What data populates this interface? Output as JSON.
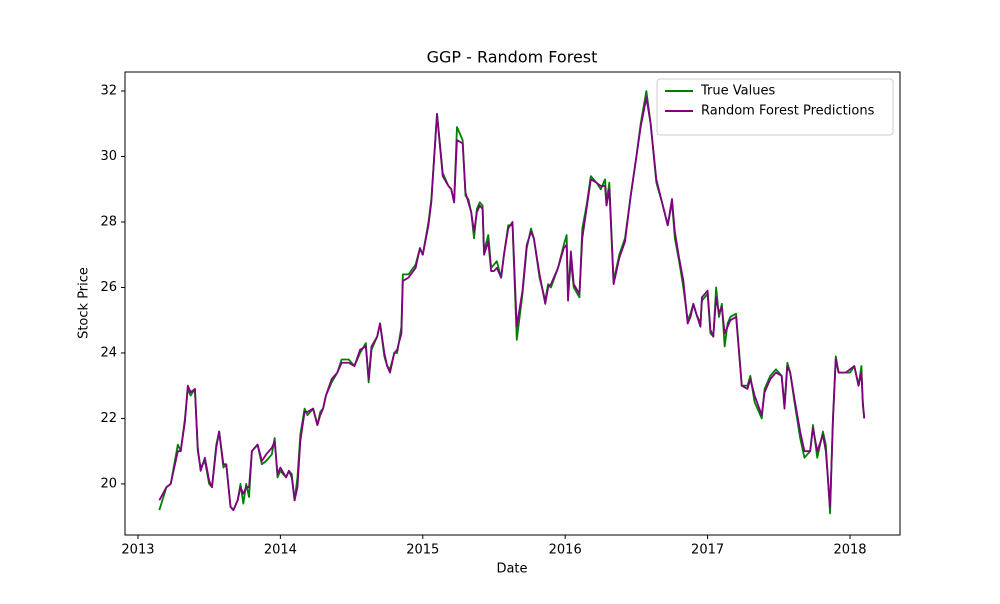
{
  "chart_data": {
    "type": "line",
    "title": "GGP - Random Forest",
    "x_label": "Date",
    "y_label": "Stock Price",
    "x": [
      2013.15,
      2013.2,
      2013.23,
      2013.28,
      2013.3,
      2013.33,
      2013.35,
      2013.37,
      2013.4,
      2013.42,
      2013.44,
      2013.47,
      2013.5,
      2013.52,
      2013.55,
      2013.57,
      2013.6,
      2013.62,
      2013.65,
      2013.67,
      2013.7,
      2013.72,
      2013.74,
      2013.76,
      2013.78,
      2013.8,
      2013.84,
      2013.87,
      2013.9,
      2013.94,
      2013.96,
      2013.98,
      2014.0,
      2014.04,
      2014.06,
      2014.08,
      2014.1,
      2014.12,
      2014.14,
      2014.17,
      2014.19,
      2014.23,
      2014.26,
      2014.28,
      2014.3,
      2014.32,
      2014.36,
      2014.4,
      2014.43,
      2014.48,
      2014.52,
      2014.56,
      2014.6,
      2014.62,
      2014.64,
      2014.68,
      2014.7,
      2014.73,
      2014.75,
      2014.77,
      2014.8,
      2014.82,
      2014.85,
      2014.86,
      2014.9,
      2014.95,
      2014.98,
      2015.0,
      2015.04,
      2015.06,
      2015.1,
      2015.14,
      2015.18,
      2015.2,
      2015.22,
      2015.24,
      2015.28,
      2015.3,
      2015.32,
      2015.34,
      2015.36,
      2015.38,
      2015.4,
      2015.42,
      2015.43,
      2015.46,
      2015.48,
      2015.5,
      2015.52,
      2015.55,
      2015.57,
      2015.6,
      2015.63,
      2015.66,
      2015.7,
      2015.73,
      2015.76,
      2015.78,
      2015.82,
      2015.86,
      2015.88,
      2015.9,
      2015.95,
      2015.99,
      2016.01,
      2016.02,
      2016.04,
      2016.06,
      2016.1,
      2016.12,
      2016.15,
      2016.18,
      2016.22,
      2016.25,
      2016.28,
      2016.29,
      2016.31,
      2016.34,
      2016.38,
      2016.42,
      2016.46,
      2016.5,
      2016.53,
      2016.57,
      2016.6,
      2016.64,
      2016.68,
      2016.72,
      2016.75,
      2016.77,
      2016.8,
      2016.83,
      2016.86,
      2016.88,
      2016.9,
      2016.92,
      2016.95,
      2016.96,
      2017.0,
      2017.02,
      2017.04,
      2017.06,
      2017.08,
      2017.1,
      2017.12,
      2017.14,
      2017.16,
      2017.2,
      2017.24,
      2017.28,
      2017.3,
      2017.33,
      2017.38,
      2017.4,
      2017.44,
      2017.48,
      2017.52,
      2017.54,
      2017.56,
      2017.58,
      2017.61,
      2017.65,
      2017.68,
      2017.72,
      2017.74,
      2017.77,
      2017.81,
      2017.83,
      2017.86,
      2017.88,
      2017.9,
      2017.92,
      2017.97,
      2018.0,
      2018.03,
      2018.06,
      2018.08,
      2018.09,
      2018.1
    ],
    "series": [
      {
        "name": "True Values",
        "color": "#008000",
        "values": [
          19.2,
          19.9,
          20.0,
          21.2,
          21.0,
          22.0,
          22.9,
          22.7,
          22.9,
          21.0,
          20.5,
          20.7,
          20.0,
          19.9,
          21.2,
          21.6,
          20.5,
          20.6,
          19.3,
          19.2,
          19.5,
          20.0,
          19.4,
          20.0,
          19.6,
          21.0,
          21.2,
          20.6,
          20.7,
          20.9,
          21.4,
          20.2,
          20.4,
          20.2,
          20.4,
          20.3,
          19.5,
          20.2,
          21.5,
          22.3,
          22.1,
          22.3,
          21.8,
          22.2,
          22.3,
          22.7,
          23.1,
          23.4,
          23.8,
          23.8,
          23.6,
          24.0,
          24.3,
          23.1,
          24.1,
          24.5,
          24.9,
          23.9,
          23.6,
          23.5,
          24.0,
          24.0,
          24.8,
          26.4,
          26.4,
          26.7,
          27.2,
          27.0,
          28.0,
          28.7,
          31.3,
          29.5,
          29.1,
          29.0,
          28.6,
          30.9,
          30.5,
          28.8,
          28.7,
          28.3,
          27.5,
          28.4,
          28.6,
          28.5,
          27.1,
          27.6,
          26.6,
          26.7,
          26.8,
          26.3,
          27.0,
          27.9,
          27.9,
          24.4,
          25.8,
          27.2,
          27.8,
          27.5,
          26.3,
          25.6,
          26.1,
          26.0,
          26.6,
          27.3,
          27.6,
          25.8,
          26.8,
          26.0,
          25.7,
          27.8,
          28.5,
          29.4,
          29.2,
          29.0,
          29.3,
          28.6,
          29.2,
          26.2,
          27.0,
          27.5,
          28.8,
          30.0,
          31.0,
          32.0,
          31.0,
          29.2,
          28.6,
          27.9,
          28.6,
          27.5,
          26.8,
          26.0,
          25.0,
          25.2,
          25.5,
          25.2,
          24.9,
          25.6,
          25.8,
          24.6,
          24.5,
          26.0,
          25.1,
          25.5,
          24.2,
          24.9,
          25.1,
          25.2,
          23.0,
          23.0,
          23.3,
          22.5,
          22.0,
          22.9,
          23.3,
          23.5,
          23.3,
          22.4,
          23.7,
          23.4,
          22.5,
          21.4,
          20.8,
          21.0,
          21.8,
          20.8,
          21.6,
          21.2,
          19.1,
          22.0,
          23.9,
          23.4,
          23.4,
          23.4,
          23.6,
          23.0,
          23.6,
          22.4,
          22.0
        ]
      },
      {
        "name": "Random Forest Predictions",
        "color": "#800080",
        "values": [
          19.5,
          19.9,
          20.0,
          21.0,
          21.0,
          21.9,
          23.0,
          22.8,
          22.9,
          21.1,
          20.4,
          20.8,
          20.1,
          19.9,
          21.1,
          21.6,
          20.6,
          20.6,
          19.3,
          19.2,
          19.5,
          19.9,
          19.7,
          19.9,
          19.9,
          21.0,
          21.2,
          20.7,
          20.9,
          21.1,
          21.3,
          20.3,
          20.5,
          20.2,
          20.4,
          20.2,
          19.5,
          19.9,
          21.3,
          22.2,
          22.2,
          22.3,
          21.8,
          22.1,
          22.3,
          22.7,
          23.2,
          23.4,
          23.7,
          23.7,
          23.6,
          24.1,
          24.2,
          23.2,
          24.2,
          24.5,
          24.9,
          24.0,
          23.6,
          23.4,
          24.0,
          24.1,
          24.6,
          26.2,
          26.3,
          26.6,
          27.2,
          27.0,
          27.9,
          28.6,
          31.3,
          29.4,
          29.1,
          29.0,
          28.6,
          30.5,
          30.4,
          28.9,
          28.6,
          28.3,
          27.7,
          28.3,
          28.5,
          28.4,
          27.0,
          27.4,
          26.5,
          26.5,
          26.6,
          26.3,
          27.0,
          27.8,
          28.0,
          24.8,
          25.9,
          27.3,
          27.7,
          27.5,
          26.4,
          25.5,
          26.0,
          26.1,
          26.6,
          27.2,
          27.3,
          25.6,
          27.1,
          26.1,
          25.8,
          27.5,
          28.4,
          29.3,
          29.2,
          29.1,
          29.1,
          28.5,
          29.0,
          26.1,
          26.9,
          27.4,
          28.8,
          30.0,
          30.9,
          31.8,
          31.0,
          29.3,
          28.6,
          27.9,
          28.7,
          27.7,
          26.9,
          26.2,
          24.9,
          25.1,
          25.5,
          25.2,
          24.8,
          25.7,
          25.9,
          24.7,
          24.5,
          25.7,
          25.2,
          25.4,
          24.6,
          24.8,
          25.0,
          25.1,
          23.0,
          22.9,
          23.2,
          22.7,
          22.1,
          22.8,
          23.2,
          23.4,
          23.3,
          22.3,
          23.6,
          23.4,
          22.6,
          21.6,
          21.0,
          21.0,
          21.7,
          21.0,
          21.5,
          21.0,
          19.3,
          21.9,
          23.8,
          23.4,
          23.4,
          23.5,
          23.6,
          23.0,
          23.4,
          22.5,
          22.0
        ]
      }
    ],
    "xlim": [
      2012.909,
      2018.351
    ],
    "xticks": [
      2013,
      2014,
      2015,
      2016,
      2017,
      2018
    ],
    "ylim": [
      18.44,
      32.58
    ],
    "yticks": [
      20,
      22,
      24,
      26,
      28,
      30,
      32
    ],
    "grid": false,
    "legend": "upper right"
  }
}
